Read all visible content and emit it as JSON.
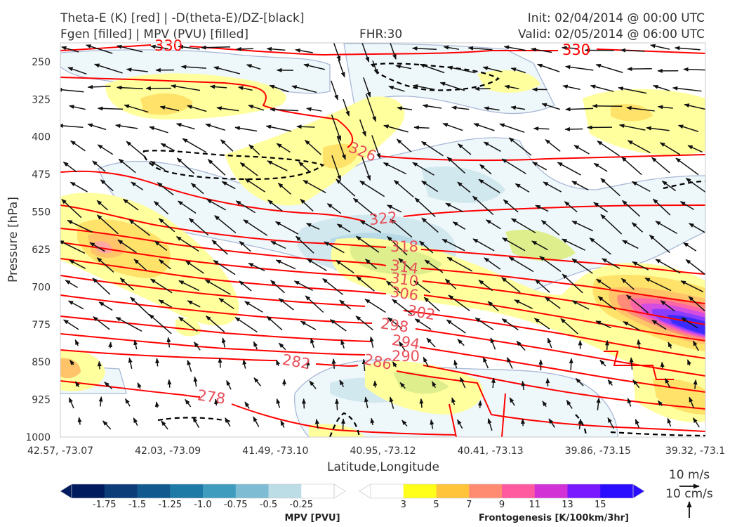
{
  "header": {
    "title_left_1": "Theta-E (K) [red] | -D(theta-E)/DZ-[black]",
    "title_left_2": "Fgen [filled] | MPV (PVU) [filled]",
    "fhr": "FHR:30",
    "init": "Init: 02/04/2014 @ 00:00 UTC",
    "valid": "Valid: 02/05/2014 @ 06:00 UTC"
  },
  "chart_data": {
    "type": "cross-section",
    "xlabel": "Latitude,Longitude",
    "ylabel": "Pressure [hPa]",
    "x_ticks": [
      "42.57, -73.07",
      "42.03, -73.09",
      "41.49, -73.10",
      "40.95, -73.12",
      "40.41, -73.13",
      "39.86, -73.15",
      "39.32, -73.1"
    ],
    "y_ticks": [
      250,
      325,
      400,
      475,
      550,
      625,
      700,
      775,
      850,
      925,
      1000
    ],
    "ylim": [
      1000,
      200
    ],
    "theta_e_labels": [
      {
        "value": "330"
      },
      {
        "value": "330"
      },
      {
        "value": "326"
      },
      {
        "value": "322"
      },
      {
        "value": "318"
      },
      {
        "value": "314"
      },
      {
        "value": "310"
      },
      {
        "value": "306"
      },
      {
        "value": "302"
      },
      {
        "value": "298"
      },
      {
        "value": "294"
      },
      {
        "value": "290"
      },
      {
        "value": "286"
      },
      {
        "value": "282"
      },
      {
        "value": "278"
      }
    ],
    "theta_e_color": "#ff0000",
    "label_color": "#e8505a",
    "dthetaedz_color": "#000000",
    "mpv_colorbar": {
      "label": "MPV [PVU]",
      "ticks": [
        "-1.75",
        "-1.5",
        "-1.25",
        "-1.0",
        "-0.75",
        "-0.5",
        "-0.25"
      ],
      "colors": [
        "#001c5e",
        "#0d3d78",
        "#12598f",
        "#1d7aa6",
        "#3f9cbf",
        "#7dbcd3",
        "#bcdde6",
        "#ffffff"
      ]
    },
    "fgen_colorbar": {
      "label": "Frontogenesis [K/100km/3hr]",
      "ticks": [
        "3",
        "5",
        "7",
        "9",
        "11",
        "13",
        "15"
      ],
      "colors": [
        "#ffffff",
        "#ffff1a",
        "#ffc43a",
        "#ff8c70",
        "#ff5aa0",
        "#d231d6",
        "#7a19ff",
        "#2a0cff"
      ]
    },
    "quiver_key": {
      "horizontal": "10 m/s",
      "vertical": "10 cm/s"
    }
  }
}
